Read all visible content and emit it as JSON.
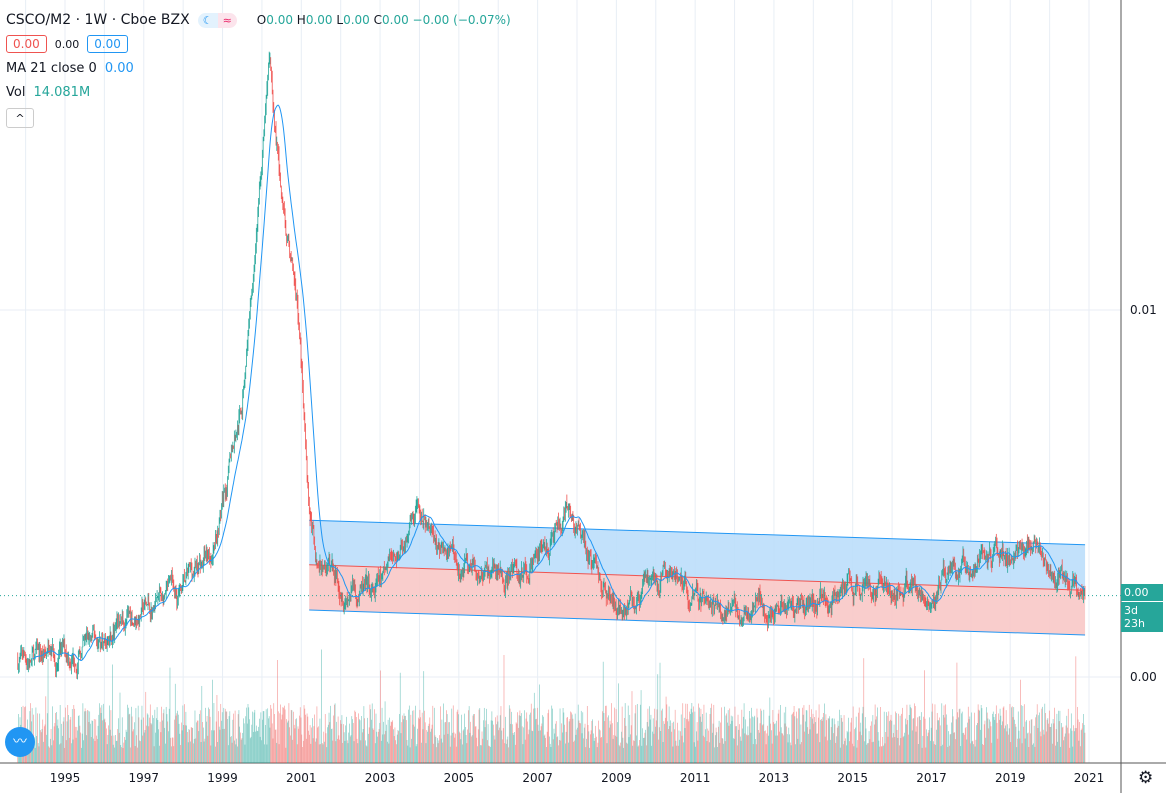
{
  "header": {
    "symbol": "CSCO/M2 · 1W · Cboe BZX",
    "o": "0.00",
    "h": "0.00",
    "l": "0.00",
    "c": "0.00",
    "change": "−0.00 (−0.07%)",
    "o_label": "O",
    "h_label": "H",
    "l_label": "L",
    "c_label": "C",
    "sell": "0.00",
    "spread": "0.00",
    "buy": "0.00"
  },
  "indicators": {
    "ma_label": "MA 21 close 0",
    "ma_value": "0.00",
    "vol_label": "Vol",
    "vol_value": "14.081M"
  },
  "price_axis": {
    "last_price": "0.00",
    "countdown": "3d 23h"
  },
  "colors": {
    "up": "#26a69a",
    "down": "#ef5350",
    "ma": "#2196f3",
    "channel_upper_fill": "#bbdefb",
    "channel_lower_fill": "#f8c8c6"
  },
  "chart_data": {
    "type": "candlestick",
    "interval": "1W",
    "y_scale": "log",
    "y_ticks": [
      {
        "value": 0.01,
        "label": "0.01"
      },
      {
        "value": 0.0025,
        "label": "0.00"
      }
    ],
    "x_ticks": [
      "1995",
      "1997",
      "1999",
      "2001",
      "2003",
      "2005",
      "2007",
      "2009",
      "2011",
      "2013",
      "2015",
      "2017",
      "2019",
      "2021"
    ],
    "grid": true,
    "close_path": [
      [
        1993.8,
        0.00267
      ],
      [
        1995,
        0.0027
      ],
      [
        1996,
        0.00288
      ],
      [
        1997,
        0.00322
      ],
      [
        1998,
        0.00347
      ],
      [
        1998.7,
        0.00404
      ],
      [
        1999,
        0.00488
      ],
      [
        1999.5,
        0.00712
      ],
      [
        2000.2,
        0.0257
      ],
      [
        2000.5,
        0.0151
      ],
      [
        2000.9,
        0.0104
      ],
      [
        2001.2,
        0.00488
      ],
      [
        2001.4,
        0.00389
      ],
      [
        2002.8,
        0.00334
      ],
      [
        2004,
        0.00452
      ],
      [
        2005,
        0.00375
      ],
      [
        2006.5,
        0.00367
      ],
      [
        2007.8,
        0.00452
      ],
      [
        2009,
        0.00328
      ],
      [
        2010.3,
        0.00367
      ],
      [
        2011.6,
        0.00316
      ],
      [
        2013,
        0.00328
      ],
      [
        2015,
        0.00347
      ],
      [
        2017,
        0.00354
      ],
      [
        2019.5,
        0.00419
      ],
      [
        2020.8,
        0.00334
      ],
      [
        2020.9,
        0.00345
      ]
    ],
    "moving_average_period": 21,
    "regression_channel": {
      "start": 2001.2,
      "end": 2020.9,
      "upper": [
        0.00452,
        0.00412
      ],
      "middle": [
        0.00382,
        0.00347
      ],
      "lower": [
        0.00322,
        0.00293
      ]
    },
    "last_volume": "14.081M"
  }
}
